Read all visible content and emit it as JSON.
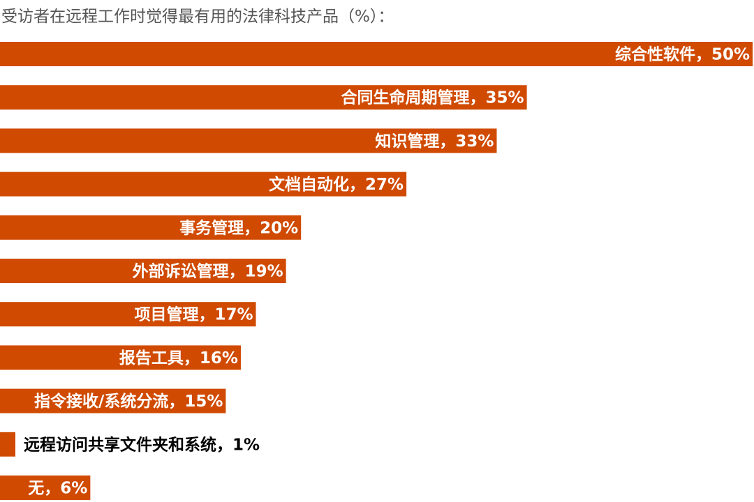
{
  "title": "受访者在远程工作时觉得最有用的法律科技产品（%）：",
  "chart_data": {
    "type": "bar",
    "orientation": "horizontal",
    "title": "受访者在远程工作时觉得最有用的法律科技产品（%）：",
    "unit": "%",
    "bar_color": "#D04A02",
    "label_inside_color": "#ffffff",
    "label_outside_color": "#000000",
    "categories": [
      "综合性软件",
      "合同生命周期管理",
      "知识管理",
      "文档自动化",
      "事务管理",
      "外部诉讼管理",
      "项目管理",
      "报告工具",
      "指令接收/系统分流",
      "远程访问共享文件夹和系统",
      "无"
    ],
    "values": [
      50,
      35,
      33,
      27,
      20,
      19,
      17,
      16,
      15,
      1,
      6
    ],
    "labels": [
      "综合性软件，50%",
      "合同生命周期管理，35%",
      "知识管理，33%",
      "文档自动化，27%",
      "事务管理，20%",
      "外部诉讼管理，19%",
      "项目管理，17%",
      "报告工具，16%",
      "指令接收/系统分流，15%",
      "远程访问共享文件夹和系统，1%",
      "无，6%"
    ],
    "xlim": [
      0,
      50
    ]
  }
}
